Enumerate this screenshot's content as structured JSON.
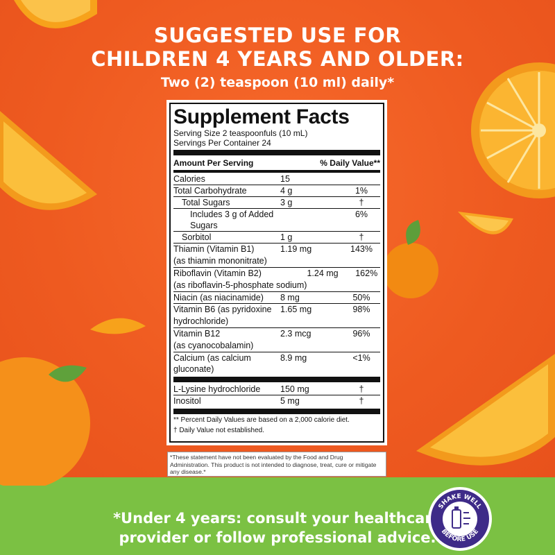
{
  "headline": {
    "line1": "SUGGESTED USE FOR",
    "line2": "CHILDREN 4 YEARS AND OLDER:",
    "dose": "Two (2) teaspoon (10 ml) daily*"
  },
  "facts": {
    "title": "Supplement Facts",
    "serving_size": "Serving Size 2 teaspoonfuls (10 mL)",
    "servings_per_container": "Servings Per Container 24",
    "header_amount": "Amount Per Serving",
    "header_dv": "% Daily Value**",
    "rows": [
      {
        "name": "Calories",
        "amount": "15",
        "dv": ""
      },
      {
        "name": "Total Carbohydrate",
        "amount": "4 g",
        "dv": "1%"
      },
      {
        "name": "Total Sugars",
        "amount": "3 g",
        "dv": "†"
      },
      {
        "name": "Includes 3 g of Added Sugars",
        "amount": "",
        "dv": "6%"
      },
      {
        "name": "Sorbitol",
        "amount": "1 g",
        "dv": "†"
      },
      {
        "name": "Thiamin (Vitamin B1)",
        "sub": "(as thiamin mononitrate)",
        "amount": "1.19 mg",
        "dv": "143%"
      },
      {
        "name": "Riboflavin (Vitamin B2)",
        "sub": "(as riboflavin-5-phosphate sodium)",
        "amount": "1.24 mg",
        "dv": "162%"
      },
      {
        "name": "Niacin (as niacinamide)",
        "amount": "8 mg",
        "dv": "50%"
      },
      {
        "name": "Vitamin B6 (as pyridoxine",
        "sub": "hydrochloride)",
        "amount": "1.65 mg",
        "dv": "98%"
      },
      {
        "name": "Vitamin B12",
        "sub": "(as cyanocobalamin)",
        "amount": "2.3 mcg",
        "dv": "96%"
      },
      {
        "name": "Calcium (as calcium gluconate)",
        "amount": "8.9 mg",
        "dv": "<1%"
      },
      {
        "name": "L-Lysine hydrochloride",
        "amount": "150 mg",
        "dv": "†"
      },
      {
        "name": "Inositol",
        "amount": "5 mg",
        "dv": "†"
      }
    ],
    "footnote1": "** Percent Daily Values are based on a 2,000 calorie diet.",
    "footnote2": "† Daily Value not established."
  },
  "disclaimer": "*These statement have not been evaluated by the Food and Drug Administration. This product is not intended to diagnose, treat, cure or mitigate any disease.*",
  "bottom": {
    "line1": "*Under 4 years: consult your healthcare",
    "line2": "provider or follow professional advice."
  },
  "badge": {
    "top": "SHAKE WELL",
    "bottom": "BEFORE USE",
    "icon": "bottle-shake-icon"
  }
}
